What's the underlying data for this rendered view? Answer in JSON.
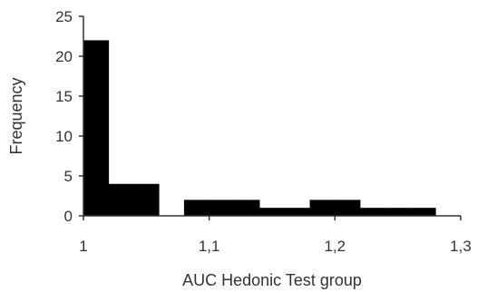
{
  "chart_data": {
    "type": "bar",
    "xlabel": "AUC Hedonic Test group",
    "ylabel": "Frequency",
    "xlim": [
      1,
      1.3
    ],
    "ylim": [
      0,
      25
    ],
    "xticks": [
      1,
      1.1,
      1.2,
      1.3
    ],
    "xtick_labels": [
      "1",
      "1,1",
      "1,2",
      "1,3"
    ],
    "yticks": [
      0,
      5,
      10,
      15,
      20,
      25
    ],
    "ytick_labels": [
      "0",
      "5",
      "10",
      "15",
      "20",
      "25"
    ],
    "grid": false,
    "legend": "none",
    "bar_color": "#000000",
    "bins": [
      {
        "x0": 1.0,
        "x1": 1.02,
        "value": 22
      },
      {
        "x0": 1.02,
        "x1": 1.04,
        "value": 4
      },
      {
        "x0": 1.04,
        "x1": 1.06,
        "value": 4
      },
      {
        "x0": 1.06,
        "x1": 1.08,
        "value": 0
      },
      {
        "x0": 1.08,
        "x1": 1.1,
        "value": 2
      },
      {
        "x0": 1.1,
        "x1": 1.12,
        "value": 2
      },
      {
        "x0": 1.12,
        "x1": 1.14,
        "value": 2
      },
      {
        "x0": 1.14,
        "x1": 1.16,
        "value": 1
      },
      {
        "x0": 1.16,
        "x1": 1.18,
        "value": 1
      },
      {
        "x0": 1.18,
        "x1": 1.2,
        "value": 2
      },
      {
        "x0": 1.2,
        "x1": 1.22,
        "value": 2
      },
      {
        "x0": 1.22,
        "x1": 1.24,
        "value": 1
      },
      {
        "x0": 1.24,
        "x1": 1.26,
        "value": 1
      },
      {
        "x0": 1.26,
        "x1": 1.28,
        "value": 1
      }
    ]
  }
}
